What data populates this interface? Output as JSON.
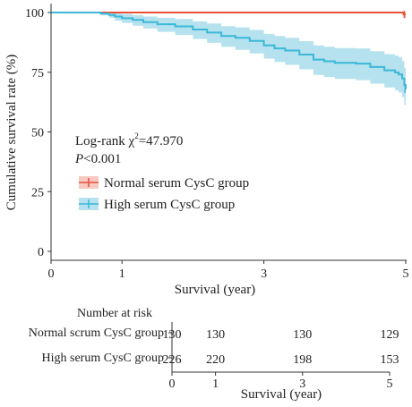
{
  "chart_data": {
    "type": "line",
    "subtype": "kaplan-meier",
    "ylabel": "Cumulative survival rate (%)",
    "xlabel": "Survival (year)",
    "xlim": [
      0,
      5
    ],
    "ylim": [
      0,
      100
    ],
    "xticks": [
      "0",
      "1",
      "3",
      "5"
    ],
    "yticks": [
      "0",
      "25",
      "50",
      "75",
      "100"
    ],
    "grid": false,
    "annotation": {
      "line1": "Log-rank χ",
      "sup": "2",
      "line1_value": "=47.970",
      "p_label": "P",
      "p_value": "<0.001"
    },
    "legend": {
      "placement": "center-left"
    },
    "series": [
      {
        "name": "Normal serum CysC group",
        "color": "#e8503a",
        "band_color": "#f7c9c0",
        "points": [
          [
            0,
            100
          ],
          [
            4.97,
            100
          ],
          [
            4.97,
            99.2
          ],
          [
            5,
            99.2
          ]
        ],
        "lower": [
          [
            0,
            100
          ],
          [
            4.97,
            100
          ],
          [
            4.97,
            97.6
          ],
          [
            5,
            97.6
          ]
        ],
        "upper": [
          [
            0,
            100
          ],
          [
            5,
            100
          ]
        ],
        "censor_x": [
          4.98
        ]
      },
      {
        "name": "High serum CysC group",
        "color": "#3bb8d8",
        "band_color": "#b6e2ef",
        "points": [
          [
            0,
            100
          ],
          [
            0.65,
            100
          ],
          [
            0.7,
            99.6
          ],
          [
            0.82,
            99
          ],
          [
            0.9,
            98.3
          ],
          [
            1,
            97.6
          ],
          [
            1.15,
            96.9
          ],
          [
            1.3,
            96
          ],
          [
            1.5,
            95.1
          ],
          [
            1.75,
            94.2
          ],
          [
            2,
            92.9
          ],
          [
            2.2,
            91.6
          ],
          [
            2.4,
            90.2
          ],
          [
            2.6,
            89.4
          ],
          [
            2.8,
            88.1
          ],
          [
            3,
            86.2
          ],
          [
            3.15,
            85
          ],
          [
            3.3,
            84.1
          ],
          [
            3.5,
            82.4
          ],
          [
            3.7,
            80.3
          ],
          [
            3.85,
            79.6
          ],
          [
            4,
            78.9
          ],
          [
            4.3,
            78.6
          ],
          [
            4.5,
            77.2
          ],
          [
            4.7,
            75.8
          ],
          [
            4.85,
            74.9
          ],
          [
            4.9,
            74.1
          ],
          [
            4.95,
            72.4
          ],
          [
            4.98,
            69.7
          ],
          [
            5,
            67.8
          ]
        ],
        "lower": [
          [
            0,
            100
          ],
          [
            0.65,
            100
          ],
          [
            0.7,
            98.8
          ],
          [
            0.82,
            97.8
          ],
          [
            0.9,
            96.6
          ],
          [
            1,
            95.6
          ],
          [
            1.15,
            94.5
          ],
          [
            1.3,
            93.3
          ],
          [
            1.5,
            91.9
          ],
          [
            1.75,
            90.6
          ],
          [
            2,
            88.9
          ],
          [
            2.2,
            87.3
          ],
          [
            2.4,
            85.6
          ],
          [
            2.6,
            84.4
          ],
          [
            2.8,
            82.9
          ],
          [
            3,
            80.7
          ],
          [
            3.15,
            79.3
          ],
          [
            3.3,
            78.1
          ],
          [
            3.5,
            76.2
          ],
          [
            3.7,
            73.9
          ],
          [
            3.85,
            73
          ],
          [
            4,
            72.2
          ],
          [
            4.3,
            71.7
          ],
          [
            4.5,
            70.2
          ],
          [
            4.7,
            68.6
          ],
          [
            4.85,
            67.4
          ],
          [
            4.9,
            66.5
          ],
          [
            4.95,
            64.6
          ],
          [
            4.98,
            61.3
          ],
          [
            5,
            59.8
          ]
        ],
        "upper": [
          [
            0,
            100
          ],
          [
            0.65,
            100
          ],
          [
            0.7,
            100
          ],
          [
            0.82,
            100
          ],
          [
            0.9,
            99.8
          ],
          [
            1,
            99.4
          ],
          [
            1.15,
            98.9
          ],
          [
            1.3,
            98.3
          ],
          [
            1.5,
            97.8
          ],
          [
            1.75,
            97.3
          ],
          [
            2,
            96.3
          ],
          [
            2.2,
            95.4
          ],
          [
            2.4,
            94.3
          ],
          [
            2.6,
            93.8
          ],
          [
            2.8,
            92.7
          ],
          [
            3,
            91
          ],
          [
            3.15,
            90.2
          ],
          [
            3.3,
            89.4
          ],
          [
            3.5,
            88
          ],
          [
            3.7,
            86.2
          ],
          [
            3.85,
            85.7
          ],
          [
            4,
            85.1
          ],
          [
            4.3,
            85
          ],
          [
            4.5,
            83.8
          ],
          [
            4.7,
            82.6
          ],
          [
            4.85,
            81.9
          ],
          [
            4.9,
            81.3
          ],
          [
            4.95,
            79.7
          ],
          [
            4.98,
            76.9
          ],
          [
            5,
            75.9
          ]
        ],
        "censor_x": [
          4.99
        ]
      }
    ],
    "risk_table": {
      "title": "Number at risk",
      "xlabel": "Survival (year)",
      "xticks": [
        "0",
        "1",
        "3",
        "5"
      ],
      "time_points": [
        0,
        1,
        3,
        5
      ],
      "rows": [
        {
          "label": "Normal scrum CysC group",
          "values": [
            "130",
            "130",
            "130",
            "129"
          ]
        },
        {
          "label": "High serum CysC group",
          "values": [
            "226",
            "220",
            "198",
            "153"
          ]
        }
      ]
    }
  }
}
